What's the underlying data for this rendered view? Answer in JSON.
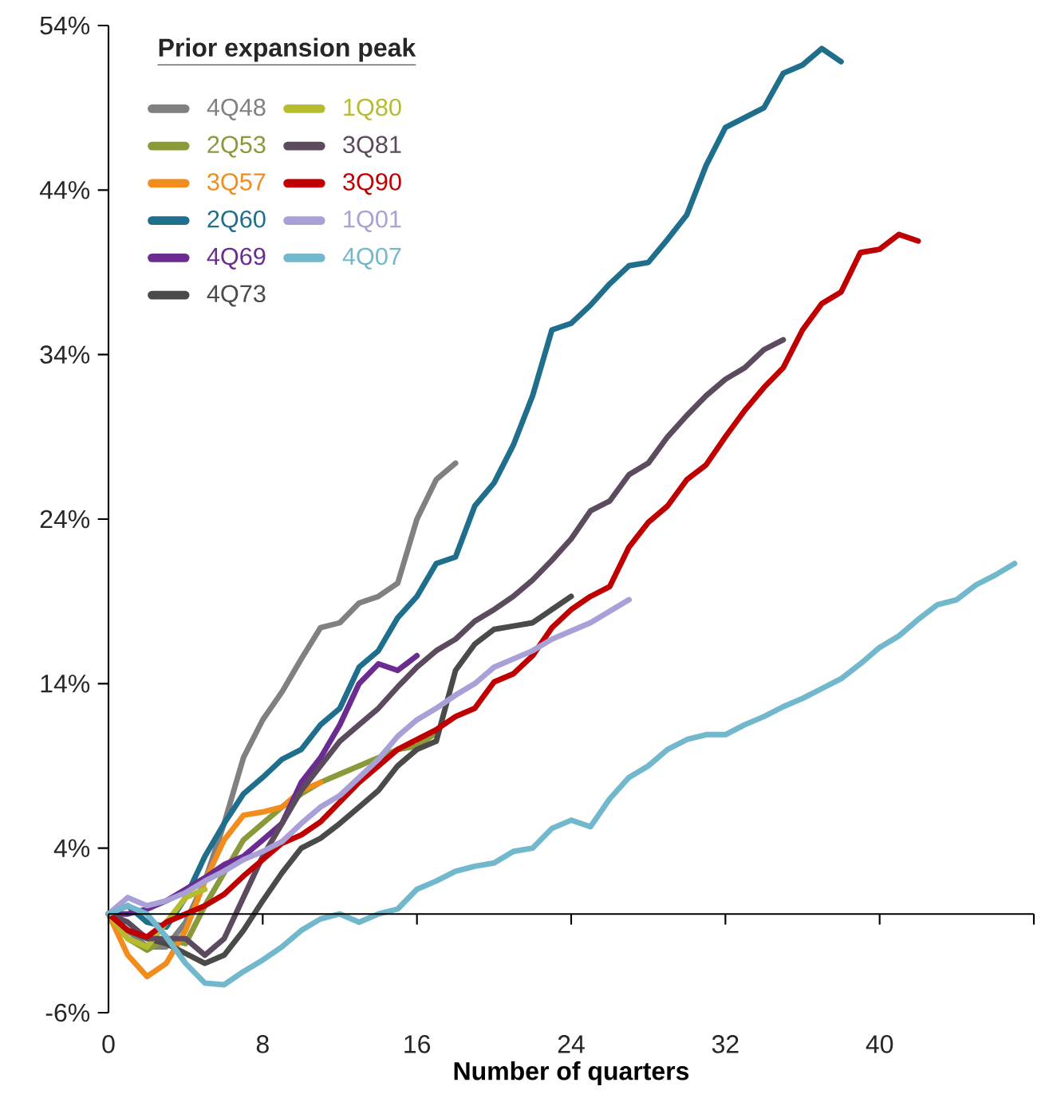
{
  "chart_data": {
    "type": "line",
    "xlabel": "Number of quarters",
    "legend_title": "Prior expansion peak",
    "legend": "top left",
    "marker": "none",
    "line_style": "solid",
    "grid": false,
    "xlim": [
      0,
      48
    ],
    "xticks": [
      0,
      8,
      16,
      24,
      32,
      40,
      {
        "value": 48,
        "label": null
      }
    ],
    "ylim": [
      -6,
      54
    ],
    "yticks": [
      {
        "value": -6,
        "label": "-6%"
      },
      {
        "value": 4,
        "label": "4%"
      },
      {
        "value": 14,
        "label": "14%"
      },
      {
        "value": 24,
        "label": "24%"
      },
      {
        "value": 34,
        "label": "34%"
      },
      {
        "value": 44,
        "label": "44%"
      },
      {
        "value": 54,
        "label": "54%"
      }
    ],
    "series": [
      {
        "name": "4Q48",
        "color": "#808080",
        "x": [
          0,
          1,
          2,
          3,
          4,
          5,
          6,
          7,
          8,
          9,
          10,
          11,
          12,
          13,
          14,
          15,
          16,
          17,
          18
        ],
        "values": [
          0,
          -1,
          -2,
          -2,
          -0.5,
          2,
          5.5,
          9.5,
          11.8,
          13.5,
          15.5,
          17.4,
          17.7,
          18.9,
          19.3,
          20.1,
          24,
          26.4,
          27.4
        ]
      },
      {
        "name": "2Q53",
        "color": "#8a9a3a",
        "x": [
          0,
          1,
          2,
          3,
          4,
          5,
          6,
          7,
          8,
          9,
          10,
          11,
          12,
          13,
          14,
          15,
          16,
          17
        ],
        "values": [
          0,
          -1.5,
          -2.2,
          -1.5,
          -1.8,
          0.5,
          2.5,
          4.5,
          5.5,
          6.5,
          7.3,
          8,
          8.5,
          9,
          9.5,
          10,
          10.2,
          11
        ]
      },
      {
        "name": "3Q57",
        "color": "#f28c1c",
        "x": [
          0,
          1,
          2,
          3,
          4,
          5,
          6,
          7,
          8,
          9,
          10,
          11
        ],
        "values": [
          0,
          -2.5,
          -3.8,
          -3,
          -1,
          2,
          4.5,
          6,
          6.2,
          6.5,
          7.5,
          8
        ]
      },
      {
        "name": "2Q60",
        "color": "#1f6e8c",
        "x": [
          0,
          1,
          2,
          3,
          4,
          5,
          6,
          7,
          8,
          9,
          10,
          11,
          12,
          13,
          14,
          15,
          16,
          17,
          18,
          19,
          20,
          21,
          22,
          23,
          24,
          25,
          26,
          27,
          28,
          29,
          30,
          31,
          32,
          33,
          34,
          35,
          36,
          37,
          38
        ],
        "values": [
          0,
          0.5,
          -0.5,
          -0.8,
          1,
          3.5,
          5.5,
          7.3,
          8.3,
          9.4,
          10,
          11.5,
          12.5,
          15,
          16,
          18,
          19.3,
          21.3,
          21.7,
          24.8,
          26.2,
          28.5,
          31.5,
          35.5,
          35.9,
          37,
          38.3,
          39.4,
          39.6,
          41,
          42.5,
          45.5,
          47.8,
          48.4,
          49,
          51.1,
          51.6,
          52.6,
          51.8
        ]
      },
      {
        "name": "4Q69",
        "color": "#6a2c91",
        "x": [
          0,
          1,
          2,
          3,
          4,
          5,
          6,
          7,
          8,
          9,
          10,
          11,
          12,
          13,
          14,
          15,
          16
        ],
        "values": [
          0,
          0,
          0.3,
          0.8,
          1.5,
          2.2,
          3,
          3.5,
          4.5,
          5.5,
          8,
          9.5,
          11.5,
          14,
          15.2,
          14.8,
          15.7
        ]
      },
      {
        "name": "4Q73",
        "color": "#4a4a48",
        "x": [
          0,
          1,
          2,
          3,
          4,
          5,
          6,
          7,
          8,
          9,
          10,
          11,
          12,
          13,
          14,
          15,
          16,
          17,
          18,
          19,
          20,
          21,
          22,
          23,
          24
        ],
        "values": [
          0,
          -1,
          -1.5,
          -1.8,
          -2.4,
          -3,
          -2.5,
          -1,
          0.8,
          2.5,
          4,
          4.6,
          5.5,
          6.5,
          7.5,
          9,
          10,
          10.5,
          14.8,
          16.4,
          17.3,
          17.5,
          17.7,
          18.5,
          19.3
        ]
      },
      {
        "name": "1Q80",
        "color": "#b5bd2e",
        "x": [
          0,
          1,
          2,
          3,
          4,
          5
        ],
        "values": [
          0,
          -1.5,
          -2,
          -0.5,
          1,
          1.5
        ]
      },
      {
        "name": "3Q81",
        "color": "#5c4a5e",
        "x": [
          0,
          1,
          2,
          3,
          4,
          5,
          6,
          7,
          8,
          9,
          10,
          11,
          12,
          13,
          14,
          15,
          16,
          17,
          18,
          19,
          20,
          21,
          22,
          23,
          24,
          25,
          26,
          27,
          28,
          29,
          30,
          31,
          32,
          33,
          34,
          35
        ],
        "values": [
          0,
          -0.5,
          -1.5,
          -1.5,
          -1.5,
          -2.5,
          -1.5,
          1,
          3.5,
          5.5,
          7.5,
          9,
          10.5,
          11.5,
          12.5,
          13.8,
          15,
          16,
          16.7,
          17.8,
          18.5,
          19.3,
          20.3,
          21.5,
          22.8,
          24.5,
          25.1,
          26.7,
          27.4,
          29,
          30.3,
          31.5,
          32.5,
          33.2,
          34.3,
          34.9
        ]
      },
      {
        "name": "3Q90",
        "color": "#c00000",
        "x": [
          0,
          1,
          2,
          3,
          4,
          5,
          6,
          7,
          8,
          9,
          10,
          11,
          12,
          13,
          14,
          15,
          16,
          17,
          18,
          19,
          20,
          21,
          22,
          23,
          24,
          25,
          26,
          27,
          28,
          29,
          30,
          31,
          32,
          33,
          34,
          35,
          36,
          37,
          38,
          39,
          40,
          41,
          42
        ],
        "values": [
          0,
          -1,
          -1.4,
          -0.5,
          0,
          0.5,
          1.2,
          2.3,
          3.3,
          4.3,
          4.8,
          5.6,
          6.8,
          8,
          9,
          10,
          10.6,
          11.2,
          12,
          12.5,
          14.1,
          14.6,
          15.7,
          17.4,
          18.5,
          19.3,
          19.9,
          22.3,
          23.8,
          24.8,
          26.4,
          27.3,
          29,
          30.6,
          32,
          33.2,
          35.5,
          37.1,
          37.8,
          40.2,
          40.4,
          41.3,
          40.9
        ]
      },
      {
        "name": "1Q01",
        "color": "#a9a0d8",
        "x": [
          0,
          1,
          2,
          3,
          4,
          5,
          6,
          7,
          8,
          9,
          10,
          11,
          12,
          13,
          14,
          15,
          16,
          17,
          18,
          19,
          20,
          21,
          22,
          23,
          24,
          25,
          26,
          27
        ],
        "values": [
          0,
          1,
          0.5,
          0.8,
          1.3,
          2,
          2.6,
          3.3,
          3.8,
          4.4,
          5.5,
          6.5,
          7.2,
          8.3,
          9.4,
          10.8,
          11.8,
          12.5,
          13.3,
          14,
          15,
          15.5,
          16,
          16.7,
          17.2,
          17.7,
          18.4,
          19.1
        ]
      },
      {
        "name": "4Q07",
        "color": "#72b8cc",
        "x": [
          0,
          1,
          2,
          3,
          4,
          5,
          6,
          7,
          8,
          9,
          10,
          11,
          12,
          13,
          14,
          15,
          16,
          17,
          18,
          19,
          20,
          21,
          22,
          23,
          24,
          25,
          26,
          27,
          28,
          29,
          30,
          31,
          32,
          33,
          34,
          35,
          36,
          37,
          38,
          39,
          40,
          41,
          42,
          43,
          44,
          45,
          46,
          47
        ],
        "values": [
          0,
          0.5,
          0,
          -1.4,
          -3,
          -4.2,
          -4.3,
          -3.5,
          -2.8,
          -2,
          -1,
          -0.3,
          0,
          -0.5,
          0,
          0.3,
          1.5,
          2,
          2.6,
          2.9,
          3.1,
          3.8,
          4,
          5.2,
          5.7,
          5.3,
          7,
          8.3,
          9,
          10,
          10.6,
          10.9,
          10.9,
          11.5,
          12,
          12.6,
          13.1,
          13.7,
          14.3,
          15.2,
          16.2,
          16.9,
          17.9,
          18.8,
          19.1,
          20,
          20.6,
          21.3
        ]
      }
    ]
  }
}
